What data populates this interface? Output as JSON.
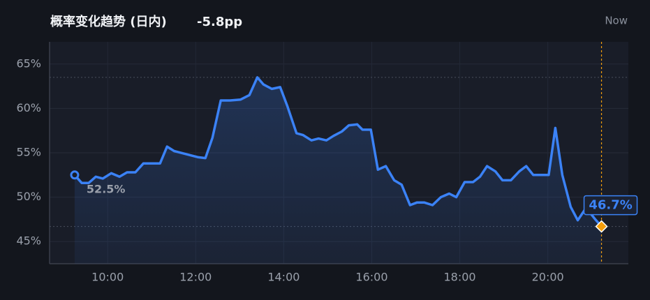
{
  "chart_data": {
    "type": "line",
    "title": "概率变化趋势 (日内)",
    "change": "-5.8pp",
    "now_label": "Now",
    "start_label": "52.5%",
    "end_label": "46.7%",
    "x": [
      9.25,
      9.41,
      9.57,
      9.73,
      9.89,
      10.08,
      10.27,
      10.44,
      10.63,
      10.81,
      11.19,
      11.35,
      11.51,
      12.06,
      12.22,
      12.38,
      12.57,
      12.78,
      13.02,
      13.22,
      13.4,
      13.54,
      13.73,
      13.92,
      14.08,
      14.29,
      14.44,
      14.63,
      14.79,
      14.97,
      15.13,
      15.32,
      15.48,
      15.67,
      15.79,
      15.98,
      16.14,
      16.32,
      16.51,
      16.68,
      16.87,
      17.03,
      17.19,
      17.38,
      17.57,
      17.76,
      17.92,
      18.11,
      18.3,
      18.46,
      18.62,
      18.81,
      18.97,
      19.16,
      19.35,
      19.51,
      19.67,
      20.02,
      20.17,
      20.33,
      20.52,
      20.68,
      20.87,
      21.06,
      21.22
    ],
    "series": [
      {
        "color": "#3b82f6",
        "values": [
          52.5,
          51.6,
          51.6,
          52.3,
          52.1,
          52.7,
          52.3,
          52.8,
          52.8,
          53.8,
          53.8,
          55.7,
          55.2,
          54.5,
          54.4,
          56.7,
          60.9,
          60.9,
          61.0,
          61.5,
          63.5,
          62.7,
          62.2,
          62.4,
          60.3,
          57.2,
          57.0,
          56.4,
          56.6,
          56.4,
          56.9,
          57.4,
          58.1,
          58.2,
          57.6,
          57.6,
          53.1,
          53.5,
          51.9,
          51.4,
          49.1,
          49.4,
          49.4,
          49.1,
          50.0,
          50.4,
          50.0,
          51.7,
          51.7,
          52.3,
          53.5,
          52.9,
          51.9,
          51.9,
          52.9,
          53.5,
          52.5,
          52.5,
          57.8,
          52.5,
          48.9,
          47.4,
          48.8,
          47.6,
          46.7
        ]
      }
    ],
    "xlim": [
      8.68,
      21.83
    ],
    "ylim": [
      42.5,
      67.5
    ],
    "xticks": [
      {
        "value": 10,
        "label": "10:00"
      },
      {
        "value": 12,
        "label": "12:00"
      },
      {
        "value": 14,
        "label": "14:00"
      },
      {
        "value": 16,
        "label": "16:00"
      },
      {
        "value": 18,
        "label": "18:00"
      },
      {
        "value": 20,
        "label": "20:00"
      }
    ],
    "yticks": [
      {
        "value": 45,
        "label": "45%"
      },
      {
        "value": 50,
        "label": "50%"
      },
      {
        "value": 55,
        "label": "55%"
      },
      {
        "value": 60,
        "label": "60%"
      },
      {
        "value": 65,
        "label": "65%"
      }
    ],
    "grid": true,
    "marker_color": "#f59e0b"
  }
}
